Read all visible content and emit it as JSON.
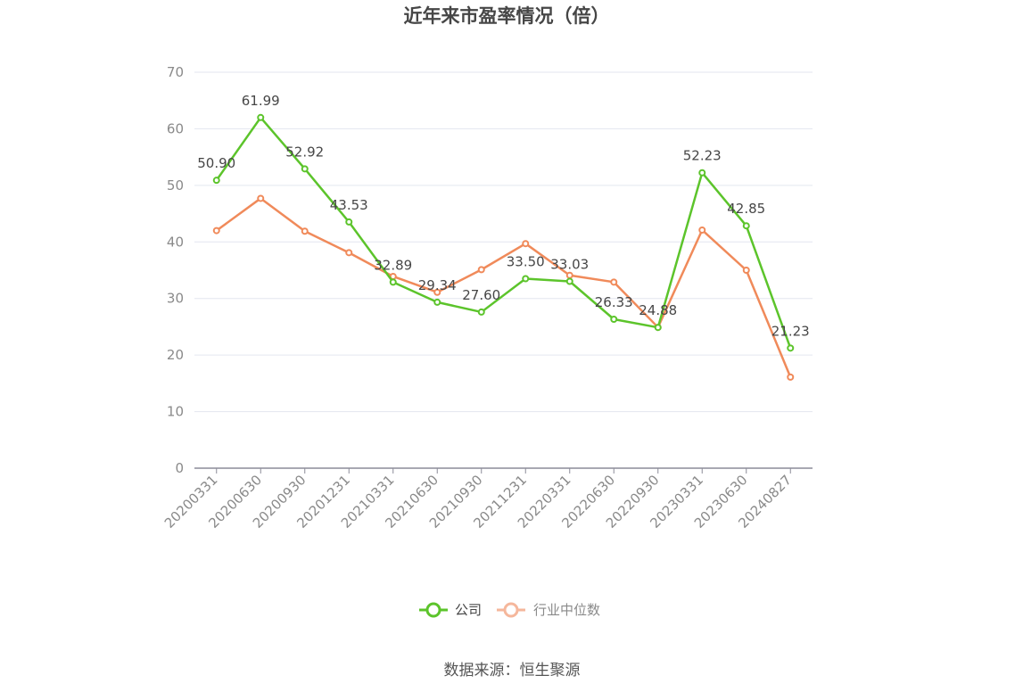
{
  "chart_data": {
    "type": "line",
    "title": "近年来市盈率情况（倍）",
    "categories": [
      "20200331",
      "20200630",
      "20200930",
      "20201231",
      "20210331",
      "20210630",
      "20210930",
      "20211231",
      "20220331",
      "20220630",
      "20220930",
      "20230331",
      "20230630",
      "20240827"
    ],
    "series": [
      {
        "name": "公司",
        "color": "#5cc42b",
        "values": [
          50.9,
          61.99,
          52.92,
          43.53,
          32.89,
          29.34,
          27.6,
          33.5,
          33.03,
          26.33,
          24.88,
          52.23,
          42.85,
          21.23
        ],
        "labels": [
          "50.90",
          "61.99",
          "52.92",
          "43.53",
          "32.89",
          "29.34",
          "27.60",
          "33.50",
          "33.03",
          "26.33",
          "24.88",
          "52.23",
          "42.85",
          "21.23"
        ]
      },
      {
        "name": "行业中位数",
        "color": "#f08a5a",
        "values": [
          42.0,
          47.7,
          41.9,
          38.1,
          33.9,
          31.1,
          35.1,
          39.7,
          34.1,
          32.9,
          24.9,
          42.1,
          35.0,
          16.1
        ]
      }
    ],
    "ylim": [
      0,
      70
    ],
    "yticks": [
      "0",
      "10",
      "20",
      "30",
      "40",
      "50",
      "60",
      "70"
    ],
    "grid": true,
    "legend_position": "bottom"
  },
  "footer": {
    "source": "数据来源：恒生聚源"
  }
}
